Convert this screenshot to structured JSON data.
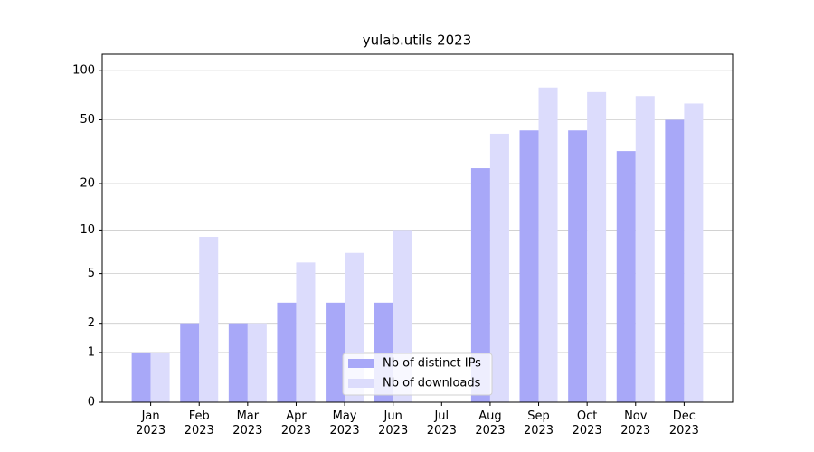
{
  "chart_data": {
    "type": "bar",
    "title": "yulab.utils 2023",
    "categories": [
      "Jan\n2023",
      "Feb\n2023",
      "Mar\n2023",
      "Apr\n2023",
      "May\n2023",
      "Jun\n2023",
      "Jul\n2023",
      "Aug\n2023",
      "Sep\n2023",
      "Oct\n2023",
      "Nov\n2023",
      "Dec\n2023"
    ],
    "series": [
      {
        "name": "Nb of distinct IPs",
        "color": "#a8a8f8",
        "values": [
          1,
          2,
          2,
          3,
          3,
          3,
          0,
          25,
          43,
          43,
          32,
          50
        ]
      },
      {
        "name": "Nb of downloads",
        "color": "#dcdcfc",
        "values": [
          1,
          9,
          2,
          6,
          7,
          10,
          0,
          41,
          79,
          74,
          70,
          63
        ]
      }
    ],
    "yscale": "log1p",
    "ylim": [
      0,
      126
    ],
    "yticks": [
      0,
      1,
      2,
      5,
      10,
      20,
      50,
      100
    ],
    "grid": true,
    "legend": "lower center"
  }
}
